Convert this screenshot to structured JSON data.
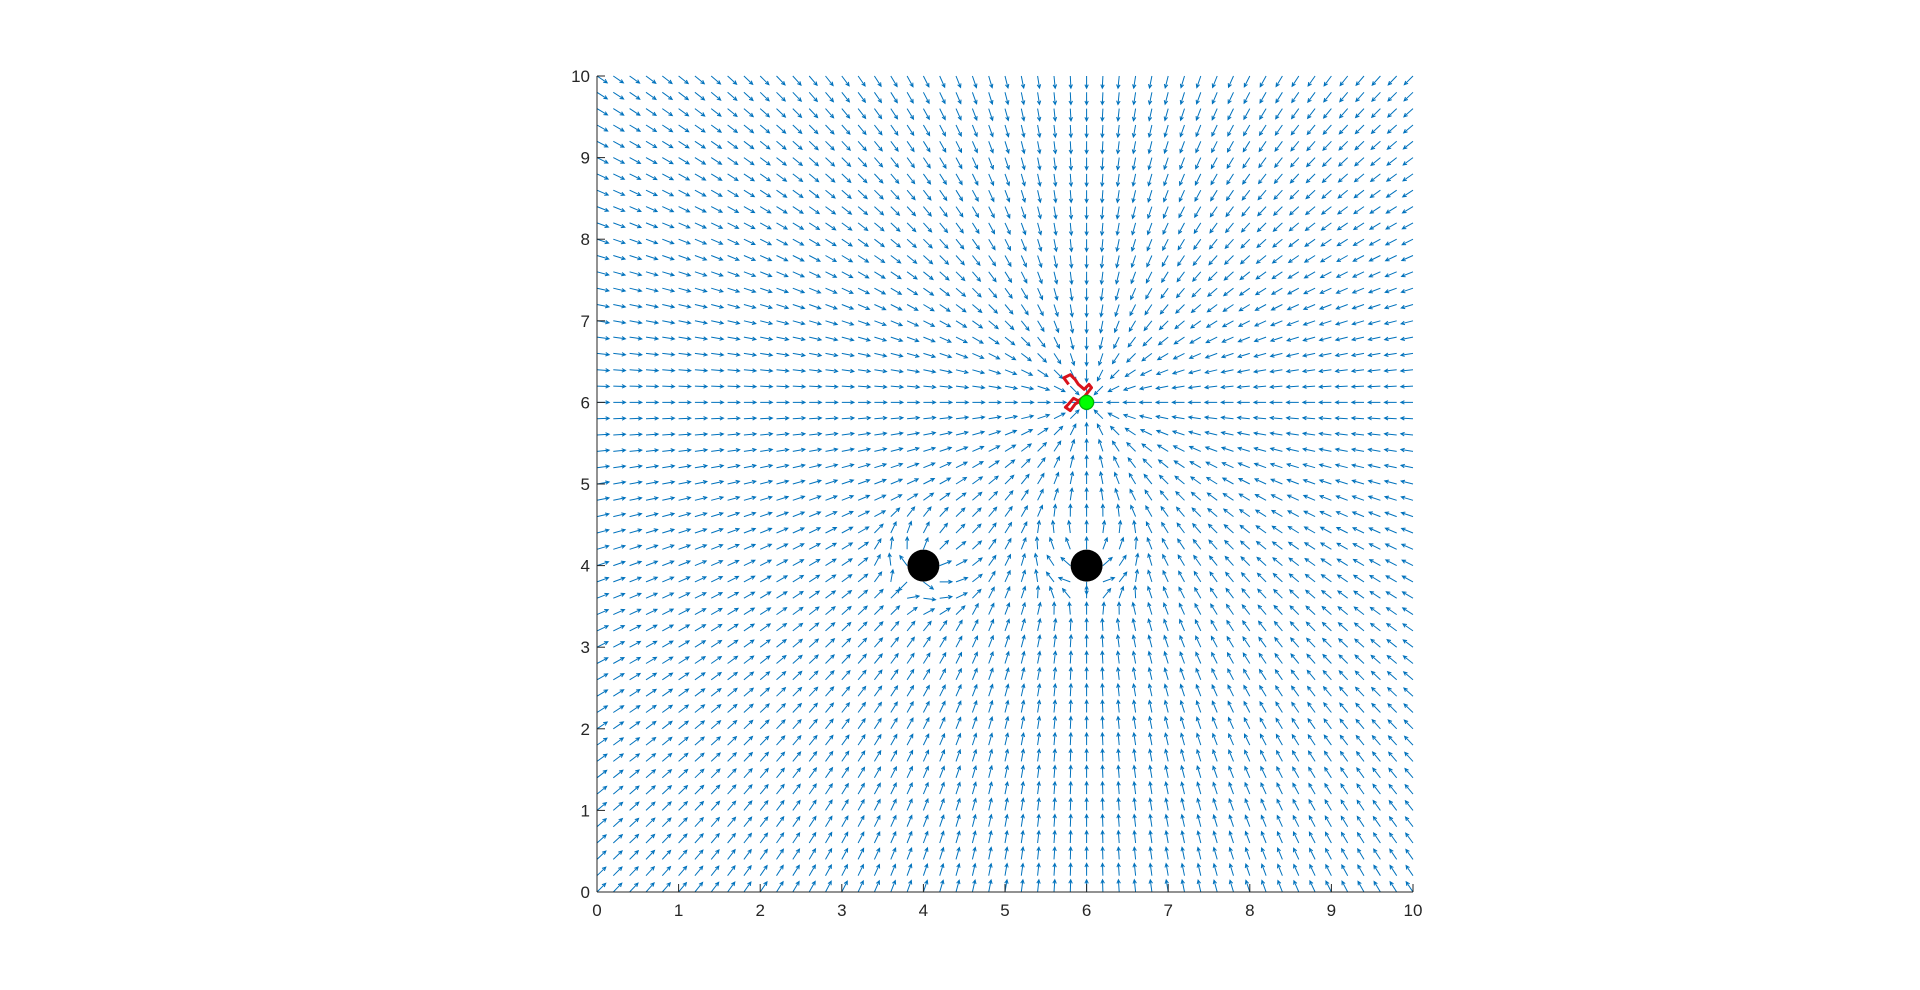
{
  "chart_data": {
    "type": "quiver",
    "title": "",
    "xlabel": "",
    "ylabel": "",
    "xlim": [
      0,
      10
    ],
    "ylim": [
      0,
      10
    ],
    "xticks": [
      "0",
      "1",
      "2",
      "3",
      "4",
      "5",
      "6",
      "7",
      "8",
      "9",
      "10"
    ],
    "yticks": [
      "0",
      "1",
      "2",
      "3",
      "4",
      "5",
      "6",
      "7",
      "8",
      "9",
      "10"
    ],
    "grid": false,
    "legend": "none",
    "field": {
      "grid_min": 0,
      "grid_max": 10,
      "grid_step": 0.2,
      "goal": [
        6,
        6
      ],
      "obstacles": [
        [
          4,
          4
        ],
        [
          6,
          4
        ]
      ],
      "color": "#0072BD"
    },
    "obstacles": [
      {
        "x": 4,
        "y": 4,
        "color": "#000000"
      },
      {
        "x": 6,
        "y": 4,
        "color": "#000000"
      }
    ],
    "goal": {
      "x": 6,
      "y": 6,
      "color": "#00FF00"
    },
    "path": {
      "color": "#D9121B",
      "points": [
        [
          5.78,
          6.22
        ],
        [
          5.72,
          6.3
        ],
        [
          5.8,
          6.34
        ],
        [
          5.86,
          6.28
        ],
        [
          5.9,
          6.22
        ],
        [
          5.97,
          6.16
        ],
        [
          6.03,
          6.22
        ],
        [
          6.06,
          6.18
        ],
        [
          5.98,
          6.08
        ],
        [
          5.9,
          6.02
        ],
        [
          5.84,
          6.05
        ],
        [
          5.78,
          5.98
        ],
        [
          5.74,
          5.94
        ],
        [
          5.8,
          5.9
        ],
        [
          5.86,
          5.98
        ],
        [
          5.93,
          6.02
        ],
        [
          5.97,
          6.0
        ]
      ]
    }
  }
}
